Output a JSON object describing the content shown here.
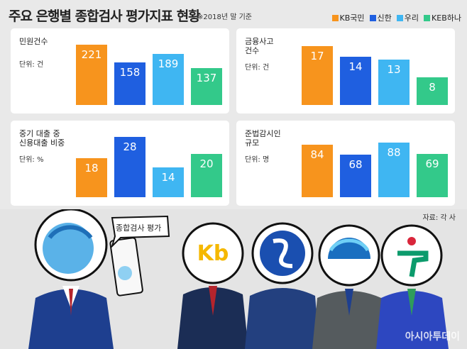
{
  "title": "주요 은행별 종합검사 평가지표 현황",
  "note": "※2018년 말 기준",
  "legend": [
    {
      "name": "KB국민",
      "color": "#f7941d"
    },
    {
      "name": "신한",
      "color": "#1f5fe0"
    },
    {
      "name": "우리",
      "color": "#3fb6f2"
    },
    {
      "name": "KEB하나",
      "color": "#33c98a"
    }
  ],
  "chart_data": [
    {
      "type": "bar",
      "title": "민원건수",
      "unit": "단위: 건",
      "values": [
        221,
        158,
        189,
        137
      ],
      "ylim": [
        0,
        230
      ]
    },
    {
      "type": "bar",
      "title": "금융사고\n건수",
      "unit": "단위: 건",
      "values": [
        17,
        14,
        13,
        8
      ],
      "ylim": [
        0,
        18
      ]
    },
    {
      "type": "bar",
      "title": "중기 대출 중\n신용대출 비중",
      "unit": "단위: %",
      "values": [
        18,
        28,
        14,
        20
      ],
      "ylim": [
        0,
        29
      ]
    },
    {
      "type": "bar",
      "title": "준법감시인\n규모",
      "unit": "단위: 명",
      "values": [
        84,
        68,
        88,
        69
      ],
      "ylim": [
        0,
        100
      ]
    }
  ],
  "source": "자료: 각 사",
  "speech": "종합검사 평가",
  "watermark": "아시아투데이"
}
